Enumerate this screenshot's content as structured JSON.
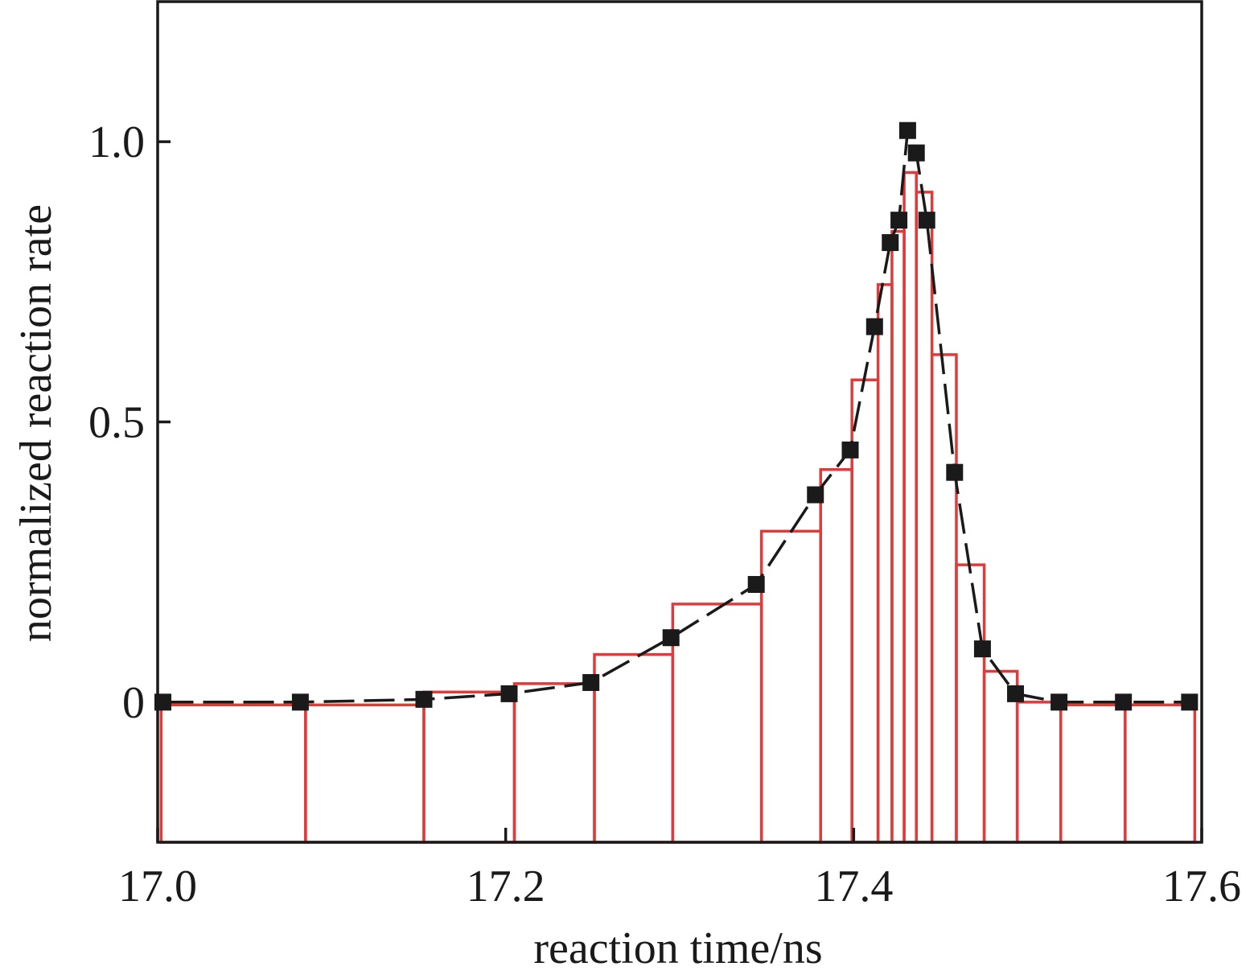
{
  "chart_data": {
    "type": "line",
    "xlabel": "reaction time/ns",
    "ylabel": "normalized reaction rate",
    "xlim": [
      17.0,
      17.6
    ],
    "ylim": [
      -0.25,
      1.25
    ],
    "x_ticks": [
      {
        "value": 17.0,
        "label": "17.0"
      },
      {
        "value": 17.2,
        "label": "17.2"
      },
      {
        "value": 17.4,
        "label": "17.4"
      },
      {
        "value": 17.6,
        "label": "17.6"
      }
    ],
    "y_ticks": [
      {
        "value": 0,
        "label": "0"
      },
      {
        "value": 0.5,
        "label": "0.5"
      },
      {
        "value": 1.0,
        "label": "1.0"
      }
    ],
    "grid": false,
    "legend": "none",
    "series": [
      {
        "kind": "line-with-square-markers",
        "color": "#1a1a1a",
        "points": [
          {
            "x": 17.003,
            "y": 0.0
          },
          {
            "x": 17.082,
            "y": 0.0
          },
          {
            "x": 17.153,
            "y": 0.005
          },
          {
            "x": 17.202,
            "y": 0.015
          },
          {
            "x": 17.249,
            "y": 0.035
          },
          {
            "x": 17.295,
            "y": 0.115
          },
          {
            "x": 17.344,
            "y": 0.21
          },
          {
            "x": 17.378,
            "y": 0.37
          },
          {
            "x": 17.398,
            "y": 0.45
          },
          {
            "x": 17.412,
            "y": 0.67
          },
          {
            "x": 17.421,
            "y": 0.82
          },
          {
            "x": 17.426,
            "y": 0.86
          },
          {
            "x": 17.431,
            "y": 1.02
          },
          {
            "x": 17.436,
            "y": 0.98
          },
          {
            "x": 17.442,
            "y": 0.86
          },
          {
            "x": 17.458,
            "y": 0.41
          },
          {
            "x": 17.474,
            "y": 0.095
          },
          {
            "x": 17.493,
            "y": 0.015
          },
          {
            "x": 17.518,
            "y": 0.0
          },
          {
            "x": 17.555,
            "y": 0.0
          },
          {
            "x": 17.593,
            "y": 0.0
          }
        ]
      },
      {
        "kind": "histogram-outline",
        "color": "#e03a3a",
        "bins": [
          {
            "x0": 17.002,
            "x1": 17.085,
            "y": -0.005
          },
          {
            "x0": 17.085,
            "x1": 17.153,
            "y": -0.005
          },
          {
            "x0": 17.153,
            "x1": 17.205,
            "y": 0.018
          },
          {
            "x0": 17.205,
            "x1": 17.251,
            "y": 0.033
          },
          {
            "x0": 17.251,
            "x1": 17.296,
            "y": 0.085
          },
          {
            "x0": 17.296,
            "x1": 17.347,
            "y": 0.175
          },
          {
            "x0": 17.347,
            "x1": 17.381,
            "y": 0.305
          },
          {
            "x0": 17.381,
            "x1": 17.399,
            "y": 0.415
          },
          {
            "x0": 17.399,
            "x1": 17.414,
            "y": 0.575
          },
          {
            "x0": 17.414,
            "x1": 17.422,
            "y": 0.745
          },
          {
            "x0": 17.422,
            "x1": 17.429,
            "y": 0.84
          },
          {
            "x0": 17.429,
            "x1": 17.436,
            "y": 0.945
          },
          {
            "x0": 17.436,
            "x1": 17.445,
            "y": 0.91
          },
          {
            "x0": 17.445,
            "x1": 17.459,
            "y": 0.62
          },
          {
            "x0": 17.459,
            "x1": 17.475,
            "y": 0.245
          },
          {
            "x0": 17.475,
            "x1": 17.494,
            "y": 0.055
          },
          {
            "x0": 17.494,
            "x1": 17.519,
            "y": 0.0
          },
          {
            "x0": 17.519,
            "x1": 17.556,
            "y": -0.005
          },
          {
            "x0": 17.556,
            "x1": 17.596,
            "y": -0.005
          }
        ]
      }
    ]
  }
}
